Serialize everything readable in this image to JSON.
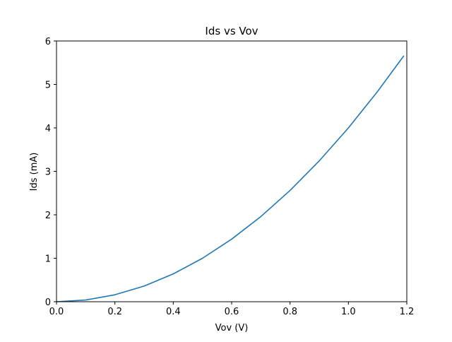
{
  "chart_data": {
    "type": "line",
    "title": "Ids vs Vov",
    "xlabel": "Vov (V)",
    "ylabel": "Ids (mA)",
    "xlim": [
      0,
      1.2
    ],
    "ylim": [
      0,
      6
    ],
    "xticks": [
      "0.0",
      "0.2",
      "0.4",
      "0.6",
      "0.8",
      "1.0",
      "1.2"
    ],
    "yticks": [
      "0",
      "1",
      "2",
      "3",
      "4",
      "5",
      "6"
    ],
    "grid": false,
    "legend": "none",
    "series": [
      {
        "color": "#1f77b4",
        "x": [
          0.0,
          0.1,
          0.2,
          0.3,
          0.4,
          0.5,
          0.6,
          0.7,
          0.8,
          0.9,
          1.0,
          1.1,
          1.19
        ],
        "y": [
          0.0,
          0.04,
          0.16,
          0.36,
          0.64,
          1.0,
          1.44,
          1.96,
          2.56,
          3.24,
          4.0,
          4.84,
          5.66
        ]
      }
    ]
  }
}
